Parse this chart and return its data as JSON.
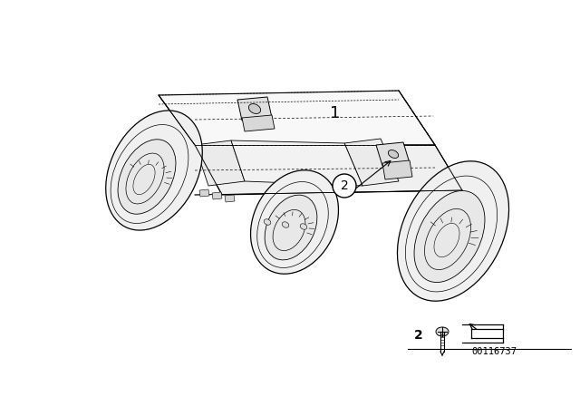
{
  "bg_color": "#ffffff",
  "line_color": "#000000",
  "fig_width": 6.4,
  "fig_height": 4.48,
  "dpi": 100,
  "part1_label": "1",
  "part2_label": "2",
  "diagram_id": "00116737"
}
